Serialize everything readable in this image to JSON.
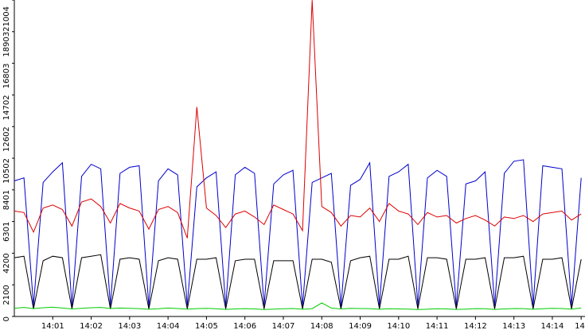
{
  "chart_data": {
    "type": "line",
    "x": [
      840,
      840.25,
      840.5,
      840.75,
      841,
      841.25,
      841.5,
      841.75,
      842,
      842.25,
      842.5,
      842.75,
      843,
      843.25,
      843.5,
      843.75,
      844,
      844.25,
      844.5,
      844.75,
      845,
      845.25,
      845.5,
      845.75,
      846,
      846.25,
      846.5,
      846.75,
      847,
      847.25,
      847.5,
      847.75,
      848,
      848.25,
      848.5,
      848.75,
      849,
      849.25,
      849.5,
      849.75,
      850,
      850.25,
      850.5,
      850.75,
      851,
      851.25,
      851.5,
      851.75,
      852,
      852.25,
      852.5,
      852.75,
      853,
      853.25,
      853.5,
      853.75,
      854,
      854.25,
      854.5,
      854.75
    ],
    "series": [
      {
        "color": "#0000cc",
        "values": [
          9000,
          9200,
          700,
          8900,
          9600,
          10200,
          650,
          9300,
          10100,
          9800,
          700,
          9500,
          9900,
          10000,
          650,
          9000,
          9800,
          9400,
          700,
          8600,
          9200,
          9600,
          650,
          9400,
          9900,
          9500,
          700,
          8800,
          9400,
          9700,
          650,
          8900,
          9200,
          9500,
          650,
          8700,
          9100,
          10200,
          700,
          9300,
          9600,
          10100,
          700,
          9200,
          9700,
          9300,
          650,
          8800,
          9000,
          9600,
          700,
          9500,
          10300,
          10400,
          700,
          10000,
          9900,
          9800,
          700,
          9200
        ]
      },
      {
        "color": "#dd0000",
        "values": [
          7000,
          6900,
          5600,
          7200,
          7400,
          7100,
          6000,
          7600,
          7800,
          7300,
          6200,
          7500,
          7200,
          7000,
          5800,
          7100,
          7300,
          6900,
          5200,
          13900,
          7200,
          6700,
          5900,
          6800,
          7000,
          6600,
          6100,
          7400,
          7100,
          6800,
          5700,
          21000,
          7300,
          6900,
          6000,
          6700,
          6600,
          7200,
          6300,
          7500,
          7000,
          6800,
          6100,
          6900,
          6600,
          6700,
          6200,
          6500,
          6700,
          6400,
          6000,
          6600,
          6500,
          6700,
          6300,
          6800,
          6900,
          7000,
          6400,
          6800
        ]
      },
      {
        "color": "#000000",
        "values": [
          3900,
          4000,
          500,
          3700,
          4000,
          3900,
          500,
          3900,
          4000,
          4100,
          500,
          3800,
          3900,
          3800,
          500,
          3700,
          3900,
          3800,
          500,
          3800,
          3800,
          3900,
          500,
          3700,
          3800,
          3800,
          500,
          3700,
          3700,
          3700,
          500,
          3800,
          3800,
          3600,
          500,
          3700,
          3900,
          4000,
          500,
          3800,
          3800,
          4000,
          500,
          3900,
          3900,
          3800,
          500,
          3800,
          3800,
          3900,
          500,
          3900,
          3900,
          4000,
          500,
          3800,
          3800,
          3900,
          500,
          3800
        ]
      },
      {
        "color": "#00cc00",
        "values": [
          550,
          600,
          520,
          580,
          620,
          560,
          500,
          540,
          580,
          600,
          530,
          560,
          540,
          520,
          480,
          510,
          560,
          530,
          490,
          520,
          540,
          510,
          470,
          500,
          520,
          500,
          460,
          490,
          510,
          530,
          480,
          520,
          900,
          560,
          500,
          540,
          530,
          520,
          480,
          510,
          500,
          490,
          460,
          480,
          510,
          500,
          470,
          490,
          520,
          510,
          470,
          500,
          530,
          520,
          480,
          510,
          540,
          530,
          490,
          560
        ]
      }
    ],
    "xlim": [
      840,
      854.85
    ],
    "xticks": [
      {
        "value": 841,
        "label": "14:01"
      },
      {
        "value": 842,
        "label": "14:02"
      },
      {
        "value": 843,
        "label": "14:03"
      },
      {
        "value": 844,
        "label": "14:04"
      },
      {
        "value": 845,
        "label": "14:05"
      },
      {
        "value": 846,
        "label": "14:06"
      },
      {
        "value": 847,
        "label": "14:07"
      },
      {
        "value": 848,
        "label": "14:08"
      },
      {
        "value": 849,
        "label": "14:09"
      },
      {
        "value": 850,
        "label": "14:10"
      },
      {
        "value": 851,
        "label": "14:11"
      },
      {
        "value": 852,
        "label": "14:12"
      },
      {
        "value": 853,
        "label": "14:13"
      },
      {
        "value": 854,
        "label": "14:14"
      },
      {
        "value": 854.75,
        "label": "14"
      }
    ],
    "ylim": [
      0,
      21004
    ],
    "yticks": [
      0,
      2100,
      4200,
      6301,
      8401,
      10502,
      12602,
      14702,
      16803,
      18903,
      21004
    ]
  }
}
